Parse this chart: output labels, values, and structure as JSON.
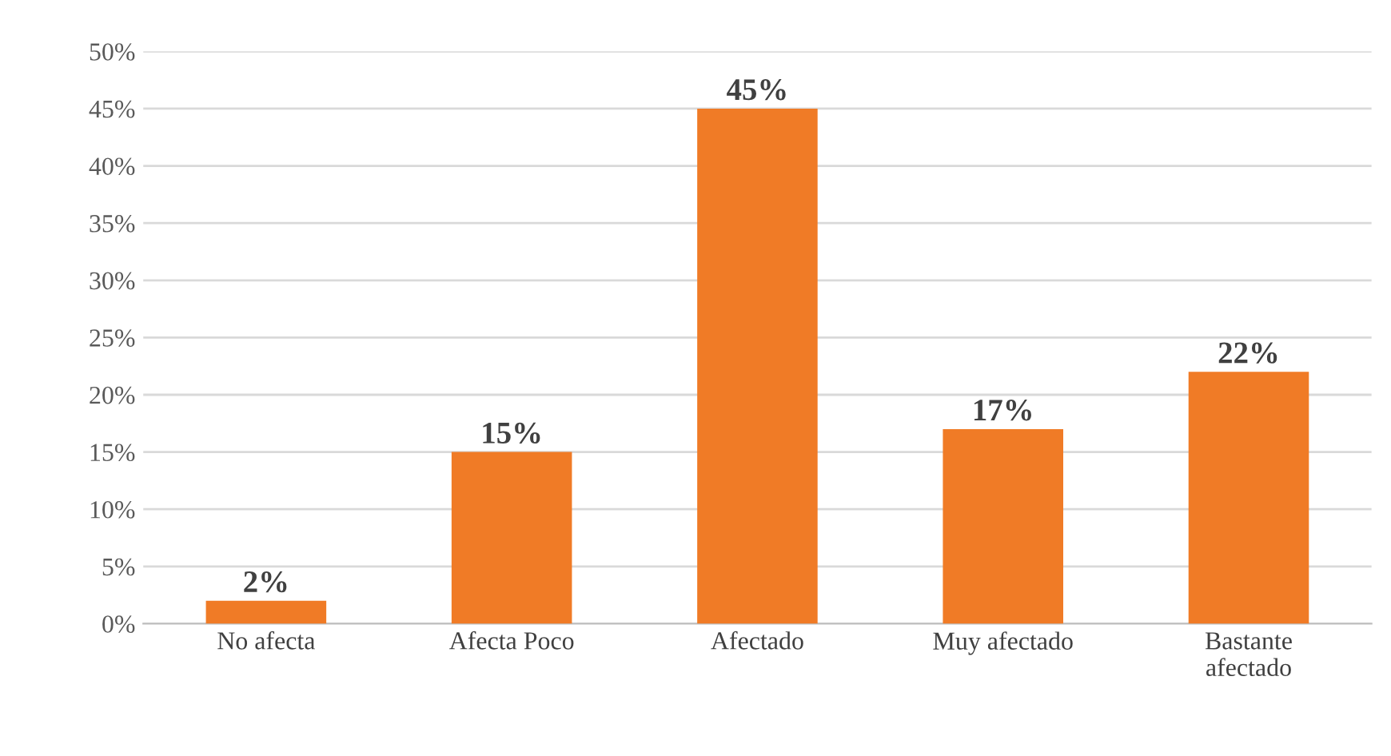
{
  "chart_data": {
    "type": "bar",
    "categories": [
      "No afecta",
      "Afecta Poco",
      "Afectado",
      "Muy afectado",
      "Bastante\nafectado"
    ],
    "values": [
      2,
      15,
      45,
      17,
      22
    ],
    "color": "#f07b26",
    "ylim": [
      0,
      50
    ],
    "yticks": [
      {
        "value": 0,
        "label": "0%"
      },
      {
        "value": 5,
        "label": "5%"
      },
      {
        "value": 10,
        "label": "10%"
      },
      {
        "value": 15,
        "label": "15%"
      },
      {
        "value": 20,
        "label": "20%"
      },
      {
        "value": 25,
        "label": "25%"
      },
      {
        "value": 30,
        "label": "30%"
      },
      {
        "value": 35,
        "label": "35%"
      },
      {
        "value": 40,
        "label": "40%"
      },
      {
        "value": 45,
        "label": "45%"
      },
      {
        "value": 50,
        "label": "50%"
      }
    ],
    "value_labels": [
      "2%",
      "15%",
      "45%",
      "17%",
      "22%"
    ],
    "grid": "y",
    "legend": false
  }
}
